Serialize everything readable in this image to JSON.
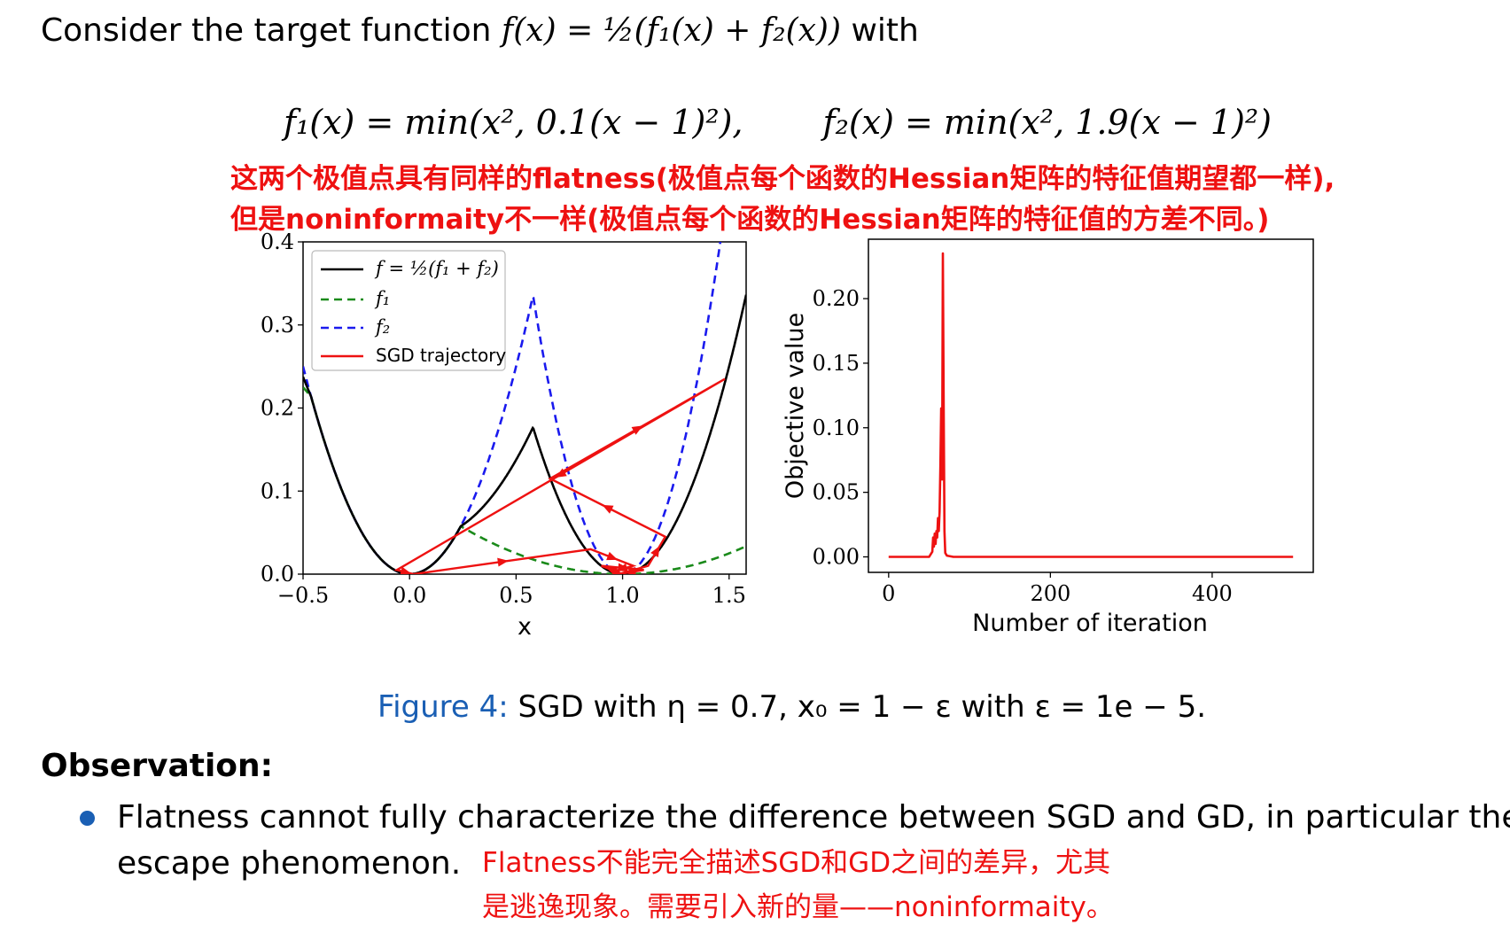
{
  "intro": {
    "lead": "Consider the target function",
    "formula": "f(x) = ½(f₁(x) + f₂(x))",
    "tail": "with"
  },
  "equations": {
    "f1": "f₁(x) = min(x², 0.1(x − 1)²),",
    "f2": "f₂(x) = min(x², 1.9(x − 1)²)"
  },
  "annotations": {
    "line1": "这两个极值点具有同样的flatness(极值点每个函数的Hessian矩阵的特征值期望都一样),",
    "line2": "但是noninformaity不一样(极值点每个函数的Hessian矩阵的特征值的方差不同。)",
    "line3": "Flatness不能完全描述SGD和GD之间的差异，尤其",
    "line4": "是逃逸现象。需要引入新的量——noninformaity。"
  },
  "colors": {
    "annotation": "#ee1111",
    "caption_label": "#1a5fb4",
    "f": "#000000",
    "f1": "#1a8a1a",
    "f2": "#1a1aee",
    "sgd": "#ee1111"
  },
  "chart_data": [
    {
      "type": "line",
      "title": "",
      "xlabel": "x",
      "ylabel": "",
      "xlim": [
        -0.5,
        1.58
      ],
      "ylim": [
        0,
        0.4
      ],
      "xticks": [
        "−0.5",
        "0.0",
        "0.5",
        "1.0",
        "1.5"
      ],
      "yticks": [
        "0.0",
        "0.1",
        "0.2",
        "0.3",
        "0.4"
      ],
      "legend_position": "top-left",
      "series": [
        {
          "name": "f = ½(f₁ + f₂)",
          "style": "solid",
          "function": "0.5*(min(x^2,0.1(x-1)^2)+min(x^2,1.9(x-1)^2))"
        },
        {
          "name": "f₁",
          "style": "dashed",
          "function": "min(x^2,0.1(x-1)^2)"
        },
        {
          "name": "f₂",
          "style": "dashed",
          "function": "min(x^2,1.9(x-1)^2)"
        },
        {
          "name": "SGD trajectory",
          "style": "solid-arrows",
          "points": [
            [
              1.0,
              0.0
            ],
            [
              0.9,
              0.01
            ],
            [
              1.1,
              0.005
            ],
            [
              0.98,
              0.0
            ],
            [
              1.12,
              0.01
            ],
            [
              1.2,
              0.045
            ],
            [
              0.66,
              0.115
            ],
            [
              1.48,
              0.235
            ],
            [
              -0.06,
              0.005
            ],
            [
              0.02,
              0.0
            ],
            [
              0.85,
              0.03
            ],
            [
              1.05,
              0.01
            ],
            [
              0.95,
              0.003
            ],
            [
              1.0,
              0.0
            ]
          ]
        }
      ]
    },
    {
      "type": "line",
      "title": "",
      "xlabel": "Number of iteration",
      "ylabel": "Objective value",
      "xlim": [
        -25,
        525
      ],
      "ylim": [
        -0.012,
        0.246
      ],
      "xticks": [
        "0",
        "200",
        "400"
      ],
      "yticks": [
        "0.00",
        "0.05",
        "0.10",
        "0.15",
        "0.20"
      ],
      "series": [
        {
          "name": "",
          "x": [
            0,
            50,
            52,
            54,
            55,
            56,
            57,
            58,
            59,
            60,
            61,
            62,
            63,
            64,
            65,
            66,
            67,
            68,
            69,
            70,
            72,
            80,
            120,
            200,
            300,
            400,
            500
          ],
          "y": [
            0,
            0,
            0.002,
            0.004,
            0.015,
            0.008,
            0.018,
            0.01,
            0.02,
            0.015,
            0.03,
            0.02,
            0.035,
            0.07,
            0.115,
            0.06,
            0.235,
            0.12,
            0.02,
            0.003,
            0.001,
            0,
            0,
            0,
            0,
            0,
            0
          ]
        }
      ]
    }
  ],
  "caption": {
    "label": "Figure 4:",
    "text": "SGD with η = 0.7, x₀ = 1 − ε with ε = 1e − 5."
  },
  "observation": {
    "heading": "Observation:",
    "bullet_line1": "Flatness cannot fully characterize the difference between SGD and GD, in particular the",
    "bullet_line2": "escape phenomenon."
  }
}
